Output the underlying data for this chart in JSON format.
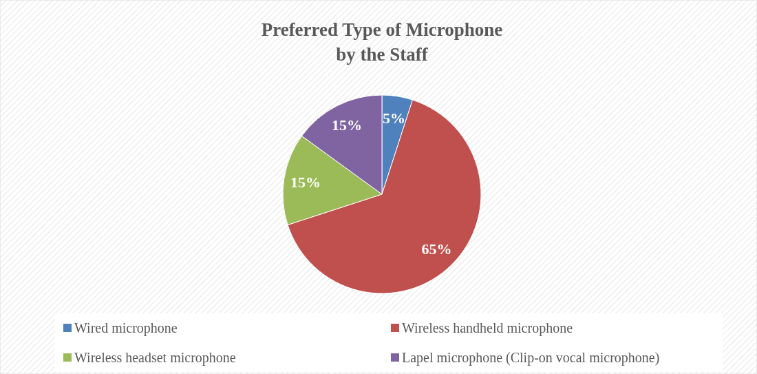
{
  "chart_data": {
    "type": "pie",
    "title": "Preferred Type of Microphone\nby the Staff",
    "categories": [
      "Wired microphone",
      "Wireless handheld microphone",
      "Wireless headset microphone",
      "Lapel microphone (Clip-on vocal microphone)"
    ],
    "values": [
      5,
      65,
      15,
      15
    ],
    "colors": [
      "#4f81bd",
      "#c0504d",
      "#9bbb59",
      "#8064a2"
    ],
    "value_labels": [
      "5%",
      "65%",
      "15%",
      "15%"
    ],
    "legend": "bottom"
  }
}
